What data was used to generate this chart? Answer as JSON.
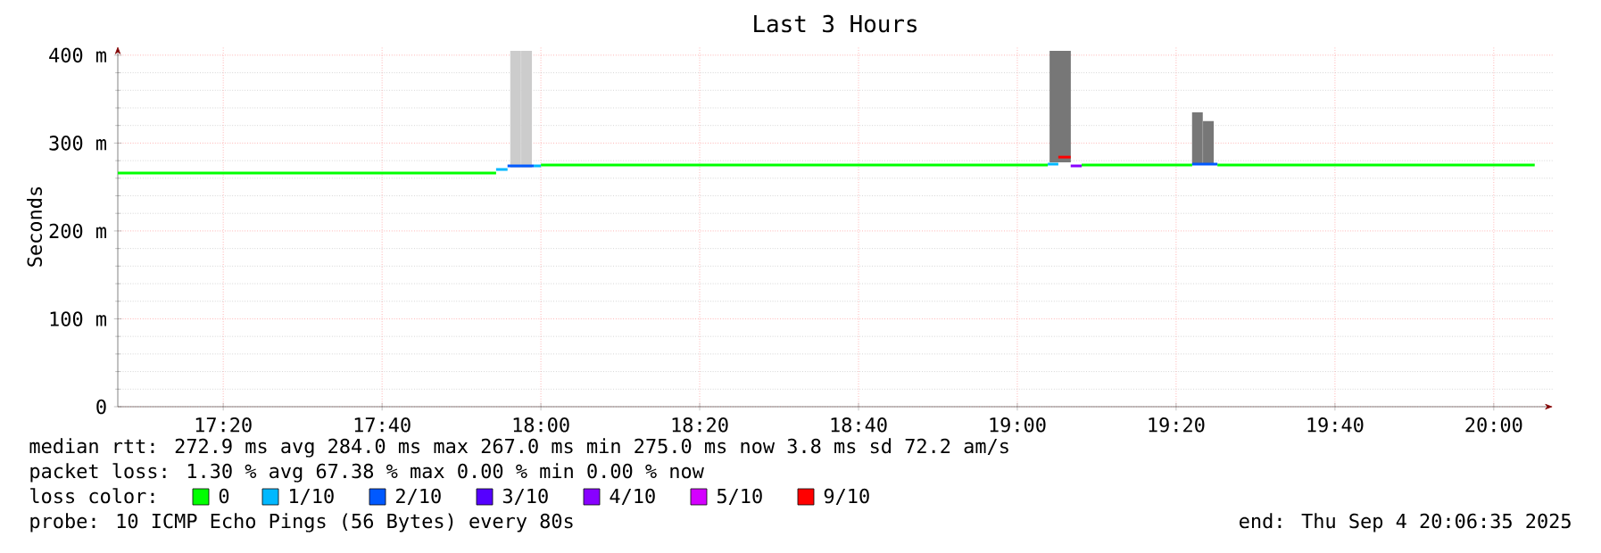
{
  "chart_data": {
    "type": "line",
    "title": "Last 3 Hours",
    "ylabel": "Seconds",
    "xlim": [
      17.112,
      20.124
    ],
    "ylim": [
      0,
      410
    ],
    "xticks": [
      {
        "value": 17.3333,
        "label": "17:20"
      },
      {
        "value": 17.6667,
        "label": "17:40"
      },
      {
        "value": 18.0,
        "label": "18:00"
      },
      {
        "value": 18.3333,
        "label": "18:20"
      },
      {
        "value": 18.6667,
        "label": "18:40"
      },
      {
        "value": 19.0,
        "label": "19:00"
      },
      {
        "value": 19.3333,
        "label": "19:20"
      },
      {
        "value": 19.6667,
        "label": "19:40"
      },
      {
        "value": 20.0,
        "label": "20:00"
      }
    ],
    "yticks": [
      0,
      {
        "value": 100,
        "label": "100 m"
      },
      {
        "value": 200,
        "label": "200 m"
      },
      {
        "value": 300,
        "label": "300 m"
      },
      {
        "value": 400,
        "label": "400 m"
      }
    ],
    "grid": true,
    "legend": "bottom",
    "legend_title": "loss color:",
    "series": [
      {
        "type": "bar",
        "x": [
          17.947,
          17.97,
          19.079,
          19.101,
          19.378,
          19.401
        ],
        "base": [
          272,
          272,
          278,
          278,
          276,
          276
        ],
        "values": [
          133,
          133,
          127,
          127,
          59,
          49
        ],
        "colors": [
          "#cccccc",
          "#cccccc",
          "#777777",
          "#777777",
          "#777777",
          "#777777"
        ]
      },
      {
        "name": "0",
        "color": "#00ff00",
        "x": [
          17.112,
          17.906,
          17.95,
          18.0,
          19.064,
          19.1,
          19.135,
          19.367,
          19.39,
          19.42,
          20.086
        ],
        "values": [
          266,
          266,
          null,
          275,
          275,
          null,
          275,
          275,
          null,
          275,
          275
        ]
      },
      {
        "name": "1/10",
        "color": "#00b8ff",
        "x": [
          17.906,
          17.93,
          17.96,
          17.985,
          18.0,
          18.5,
          19.064,
          19.086
        ],
        "values": [
          270,
          270,
          null,
          274,
          274,
          null,
          276,
          276
        ]
      },
      {
        "name": "2/10",
        "color": "#0059ff",
        "x": [
          17.93,
          17.985,
          18.5,
          19.367,
          19.42
        ],
        "values": [
          274,
          274,
          null,
          276,
          276
        ]
      },
      {
        "name": "3/10",
        "color": "#5500ff"
      },
      {
        "name": "4/10",
        "color": "#8800ff",
        "x": [
          19.112,
          19.135
        ],
        "values": [
          274,
          274
        ]
      },
      {
        "name": "5/10",
        "color": "#d400ff"
      },
      {
        "name": "9/10",
        "color": "#ff0000",
        "x": [
          19.086,
          19.112
        ],
        "values": [
          284,
          284
        ]
      }
    ],
    "annotations": [
      "median rtt:  272.9 ms avg  284.0 ms max  267.0 ms min  275.0 ms now  3.8 ms sd  72.2   am/s",
      "packet loss: 1.30 % avg  67.38 % max  0.00 % min  0.00 % now",
      "probe:       10 ICMP Echo Pings (56 Bytes) every 80s",
      "end: Thu Sep  4 20:06:35 2025"
    ]
  }
}
